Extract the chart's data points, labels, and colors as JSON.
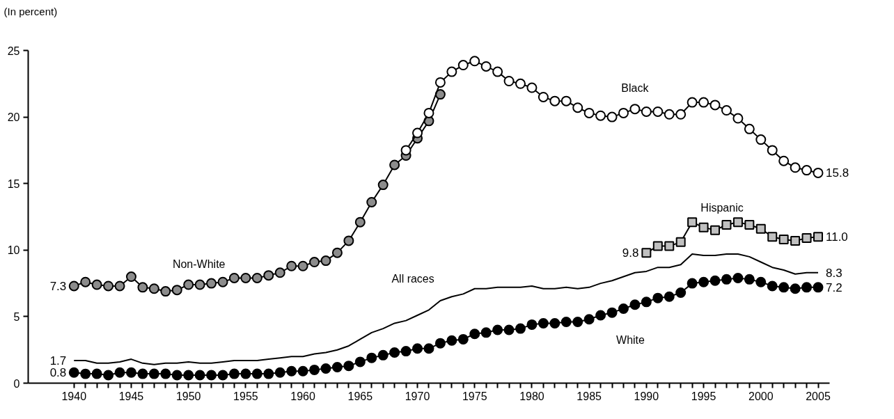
{
  "chart_data": {
    "type": "line",
    "ylabel": "(In percent)",
    "xlim": [
      1936,
      2006
    ],
    "ylim": [
      0,
      25
    ],
    "yticks": [
      0,
      5,
      10,
      15,
      20,
      25
    ],
    "xticks": [
      1940,
      {
        "value": 1941,
        "label": null
      },
      {
        "value": 1942,
        "label": null
      },
      {
        "value": 1943,
        "label": null
      },
      {
        "value": 1944,
        "label": null
      },
      1945,
      {
        "value": 1946,
        "label": null
      },
      {
        "value": 1947,
        "label": null
      },
      {
        "value": 1948,
        "label": null
      },
      {
        "value": 1949,
        "label": null
      },
      1950,
      {
        "value": 1951,
        "label": null
      },
      {
        "value": 1952,
        "label": null
      },
      {
        "value": 1953,
        "label": null
      },
      {
        "value": 1954,
        "label": null
      },
      1955,
      {
        "value": 1956,
        "label": null
      },
      {
        "value": 1957,
        "label": null
      },
      {
        "value": 1958,
        "label": null
      },
      {
        "value": 1959,
        "label": null
      },
      1960,
      {
        "value": 1961,
        "label": null
      },
      {
        "value": 1962,
        "label": null
      },
      {
        "value": 1963,
        "label": null
      },
      {
        "value": 1964,
        "label": null
      },
      1965,
      {
        "value": 1966,
        "label": null
      },
      {
        "value": 1967,
        "label": null
      },
      {
        "value": 1968,
        "label": null
      },
      {
        "value": 1969,
        "label": null
      },
      1970,
      {
        "value": 1971,
        "label": null
      },
      {
        "value": 1972,
        "label": null
      },
      {
        "value": 1973,
        "label": null
      },
      {
        "value": 1974,
        "label": null
      },
      1975,
      {
        "value": 1976,
        "label": null
      },
      {
        "value": 1977,
        "label": null
      },
      {
        "value": 1978,
        "label": null
      },
      {
        "value": 1979,
        "label": null
      },
      1980,
      {
        "value": 1981,
        "label": null
      },
      {
        "value": 1982,
        "label": null
      },
      {
        "value": 1983,
        "label": null
      },
      {
        "value": 1984,
        "label": null
      },
      1985,
      {
        "value": 1986,
        "label": null
      },
      {
        "value": 1987,
        "label": null
      },
      {
        "value": 1988,
        "label": null
      },
      {
        "value": 1989,
        "label": null
      },
      1990,
      {
        "value": 1991,
        "label": null
      },
      {
        "value": 1992,
        "label": null
      },
      {
        "value": 1993,
        "label": null
      },
      {
        "value": 1994,
        "label": null
      },
      1995,
      {
        "value": 1996,
        "label": null
      },
      {
        "value": 1997,
        "label": null
      },
      {
        "value": 1998,
        "label": null
      },
      {
        "value": 1999,
        "label": null
      },
      2000,
      {
        "value": 2001,
        "label": null
      },
      {
        "value": 2002,
        "label": null
      },
      {
        "value": 2003,
        "label": null
      },
      {
        "value": 2004,
        "label": null
      },
      2005
    ],
    "grid": false,
    "line_style": "solid",
    "series": [
      {
        "name": "Non-White",
        "color": "#8c8c8c",
        "marker": "circle",
        "x": [
          1940,
          1941,
          1942,
          1943,
          1944,
          1945,
          1946,
          1947,
          1948,
          1949,
          1950,
          1951,
          1952,
          1953,
          1954,
          1955,
          1956,
          1957,
          1958,
          1959,
          1960,
          1961,
          1962,
          1963,
          1964,
          1965,
          1966,
          1967,
          1968,
          1969,
          1970,
          1971,
          1972
        ],
        "values": [
          7.3,
          7.6,
          7.4,
          7.3,
          7.3,
          8.0,
          7.2,
          7.1,
          6.9,
          7.0,
          7.4,
          7.4,
          7.5,
          7.6,
          7.9,
          7.9,
          7.9,
          8.1,
          8.3,
          8.8,
          8.8,
          9.1,
          9.2,
          9.8,
          10.7,
          12.1,
          13.6,
          14.9,
          16.4,
          17.1,
          18.4,
          19.7,
          21.7
        ],
        "value_labels": [
          "7.3",
          null,
          null,
          null,
          null,
          null,
          null,
          null,
          null,
          null,
          null,
          null,
          null,
          null,
          null,
          null,
          null,
          null,
          null,
          null,
          null,
          null,
          null,
          null,
          null,
          null,
          null,
          null,
          null,
          null,
          null,
          null,
          null
        ]
      },
      {
        "name": "Black",
        "color": "#ffffff",
        "marker": "circle",
        "x": [
          1969,
          1970,
          1971,
          1972,
          1973,
          1974,
          1975,
          1976,
          1977,
          1978,
          1979,
          1980,
          1981,
          1982,
          1983,
          1984,
          1985,
          1986,
          1987,
          1988,
          1989,
          1990,
          1991,
          1992,
          1993,
          1994,
          1995,
          1996,
          1997,
          1998,
          1999,
          2000,
          2001,
          2002,
          2003,
          2004,
          2005
        ],
        "values": [
          17.5,
          18.8,
          20.3,
          22.6,
          23.4,
          23.9,
          24.2,
          23.8,
          23.4,
          22.7,
          22.5,
          22.2,
          21.5,
          21.2,
          21.2,
          20.7,
          20.3,
          20.1,
          20.0,
          20.3,
          20.6,
          20.4,
          20.4,
          20.2,
          20.2,
          21.1,
          21.1,
          20.9,
          20.5,
          19.9,
          19.1,
          18.3,
          17.5,
          16.7,
          16.2,
          16.0,
          15.8
        ],
        "value_labels": [
          null,
          null,
          null,
          null,
          null,
          null,
          null,
          null,
          null,
          null,
          null,
          null,
          null,
          null,
          null,
          null,
          null,
          null,
          null,
          null,
          null,
          null,
          null,
          null,
          null,
          null,
          null,
          null,
          null,
          null,
          null,
          null,
          null,
          null,
          null,
          null,
          "15.8"
        ]
      },
      {
        "name": "Hispanic",
        "color": "#c0c0c0",
        "marker": "square",
        "x": [
          1990,
          1991,
          1992,
          1993,
          1994,
          1995,
          1996,
          1997,
          1998,
          1999,
          2000,
          2001,
          2002,
          2003,
          2004,
          2005
        ],
        "values": [
          9.8,
          10.3,
          10.3,
          10.6,
          12.1,
          11.7,
          11.5,
          11.9,
          12.1,
          11.9,
          11.6,
          11.0,
          10.8,
          10.7,
          10.9,
          11.0
        ],
        "value_labels": [
          "9.8",
          null,
          null,
          null,
          null,
          null,
          null,
          null,
          null,
          null,
          null,
          null,
          null,
          null,
          null,
          "11.0"
        ]
      },
      {
        "name": "All races",
        "color": "#000000",
        "marker": "none",
        "x": [
          1940,
          1941,
          1942,
          1943,
          1944,
          1945,
          1946,
          1947,
          1948,
          1949,
          1950,
          1951,
          1952,
          1953,
          1954,
          1955,
          1956,
          1957,
          1958,
          1959,
          1960,
          1961,
          1962,
          1963,
          1964,
          1965,
          1966,
          1967,
          1968,
          1969,
          1970,
          1971,
          1972,
          1973,
          1974,
          1975,
          1976,
          1977,
          1978,
          1979,
          1980,
          1981,
          1982,
          1983,
          1984,
          1985,
          1986,
          1987,
          1988,
          1989,
          1990,
          1991,
          1992,
          1993,
          1994,
          1995,
          1996,
          1997,
          1998,
          1999,
          2000,
          2001,
          2002,
          2003,
          2004,
          2005
        ],
        "values": [
          1.7,
          1.7,
          1.5,
          1.5,
          1.6,
          1.8,
          1.5,
          1.4,
          1.5,
          1.5,
          1.6,
          1.5,
          1.5,
          1.6,
          1.7,
          1.7,
          1.7,
          1.8,
          1.9,
          2.0,
          2.0,
          2.2,
          2.3,
          2.5,
          2.8,
          3.3,
          3.8,
          4.1,
          4.5,
          4.7,
          5.1,
          5.5,
          6.2,
          6.5,
          6.7,
          7.1,
          7.1,
          7.2,
          7.2,
          7.2,
          7.3,
          7.1,
          7.1,
          7.2,
          7.1,
          7.2,
          7.5,
          7.7,
          8.0,
          8.3,
          8.4,
          8.7,
          8.7,
          8.9,
          9.7,
          9.6,
          9.6,
          9.7,
          9.7,
          9.5,
          9.1,
          8.7,
          8.5,
          8.2,
          8.3,
          8.3
        ],
        "value_labels": [
          "1.7",
          null,
          null,
          null,
          null,
          null,
          null,
          null,
          null,
          null,
          null,
          null,
          null,
          null,
          null,
          null,
          null,
          null,
          null,
          null,
          null,
          null,
          null,
          null,
          null,
          null,
          null,
          null,
          null,
          null,
          null,
          null,
          null,
          null,
          null,
          null,
          null,
          null,
          null,
          null,
          null,
          null,
          null,
          null,
          null,
          null,
          null,
          null,
          null,
          null,
          null,
          null,
          null,
          null,
          null,
          null,
          null,
          null,
          null,
          null,
          null,
          null,
          null,
          null,
          null,
          "8.3"
        ]
      },
      {
        "name": "White",
        "color": "#000000",
        "marker": "circle",
        "x": [
          1940,
          1941,
          1942,
          1943,
          1944,
          1945,
          1946,
          1947,
          1948,
          1949,
          1950,
          1951,
          1952,
          1953,
          1954,
          1955,
          1956,
          1957,
          1958,
          1959,
          1960,
          1961,
          1962,
          1963,
          1964,
          1965,
          1966,
          1967,
          1968,
          1969,
          1970,
          1971,
          1972,
          1973,
          1974,
          1975,
          1976,
          1977,
          1978,
          1979,
          1980,
          1981,
          1982,
          1983,
          1984,
          1985,
          1986,
          1987,
          1988,
          1989,
          1990,
          1991,
          1992,
          1993,
          1994,
          1995,
          1996,
          1997,
          1998,
          1999,
          2000,
          2001,
          2002,
          2003,
          2004,
          2005
        ],
        "values": [
          0.8,
          0.7,
          0.7,
          0.6,
          0.8,
          0.8,
          0.7,
          0.7,
          0.7,
          0.6,
          0.6,
          0.6,
          0.6,
          0.6,
          0.7,
          0.7,
          0.7,
          0.7,
          0.8,
          0.9,
          0.9,
          1.0,
          1.1,
          1.2,
          1.3,
          1.6,
          1.9,
          2.1,
          2.3,
          2.4,
          2.6,
          2.6,
          3.0,
          3.2,
          3.3,
          3.7,
          3.8,
          4.0,
          4.0,
          4.1,
          4.4,
          4.5,
          4.5,
          4.6,
          4.6,
          4.8,
          5.1,
          5.3,
          5.6,
          5.9,
          6.1,
          6.4,
          6.5,
          6.8,
          7.5,
          7.6,
          7.7,
          7.8,
          7.9,
          7.8,
          7.6,
          7.3,
          7.2,
          7.1,
          7.2,
          7.2
        ],
        "value_labels": [
          "0.8",
          null,
          null,
          null,
          null,
          null,
          null,
          null,
          null,
          null,
          null,
          null,
          null,
          null,
          null,
          null,
          null,
          null,
          null,
          null,
          null,
          null,
          null,
          null,
          null,
          null,
          null,
          null,
          null,
          null,
          null,
          null,
          null,
          null,
          null,
          null,
          null,
          null,
          null,
          null,
          null,
          null,
          null,
          null,
          null,
          null,
          null,
          null,
          null,
          null,
          null,
          null,
          null,
          null,
          null,
          null,
          null,
          null,
          null,
          null,
          null,
          null,
          null,
          null,
          null,
          "7.2"
        ]
      }
    ]
  }
}
